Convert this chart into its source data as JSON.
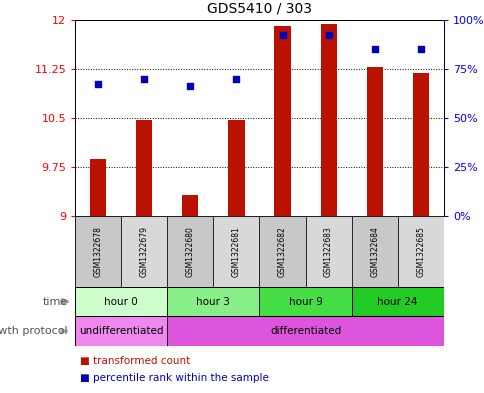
{
  "title": "GDS5410 / 303",
  "samples": [
    "GSM1322678",
    "GSM1322679",
    "GSM1322680",
    "GSM1322681",
    "GSM1322682",
    "GSM1322683",
    "GSM1322684",
    "GSM1322685"
  ],
  "bar_values": [
    9.87,
    10.47,
    9.32,
    10.47,
    11.91,
    11.93,
    11.27,
    11.19
  ],
  "percentile_values": [
    67,
    70,
    66,
    70,
    92,
    92,
    85,
    85
  ],
  "bar_bottom": 9.0,
  "ylim_left": [
    9.0,
    12.0
  ],
  "ylim_right": [
    0,
    100
  ],
  "yticks_left": [
    9,
    9.75,
    10.5,
    11.25,
    12
  ],
  "ytick_labels_left": [
    "9",
    "9.75",
    "10.5",
    "11.25",
    "12"
  ],
  "yticks_right": [
    0,
    25,
    50,
    75,
    100
  ],
  "ytick_labels_right": [
    "0%",
    "25%",
    "50%",
    "75%",
    "100%"
  ],
  "bar_color": "#bb1100",
  "dot_color": "#0000bb",
  "time_groups": [
    {
      "label": "hour 0",
      "start": 0,
      "end": 2,
      "color": "#ccffcc"
    },
    {
      "label": "hour 3",
      "start": 2,
      "end": 4,
      "color": "#88ee88"
    },
    {
      "label": "hour 9",
      "start": 4,
      "end": 6,
      "color": "#44dd44"
    },
    {
      "label": "hour 24",
      "start": 6,
      "end": 8,
      "color": "#22cc22"
    }
  ],
  "protocol_groups": [
    {
      "label": "undifferentiated",
      "start": 0,
      "end": 2,
      "color": "#ee88ee"
    },
    {
      "label": "differentiated",
      "start": 2,
      "end": 8,
      "color": "#dd55dd"
    }
  ],
  "time_label": "time",
  "protocol_label": "growth protocol",
  "legend_bar_label": "transformed count",
  "legend_dot_label": "percentile rank within the sample",
  "bar_width": 0.35,
  "sample_cell_color_even": "#c8c8c8",
  "sample_cell_color_odd": "#d8d8d8"
}
